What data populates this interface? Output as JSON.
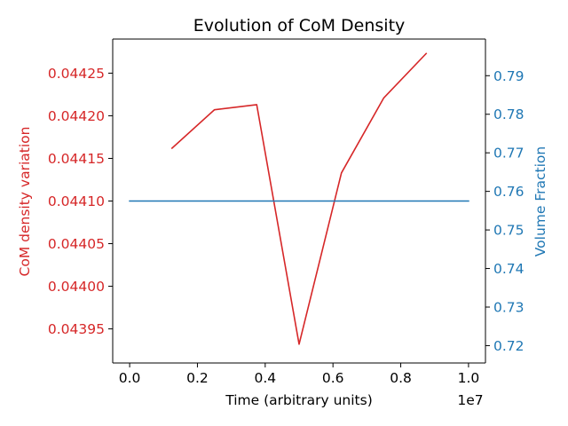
{
  "chart_data": {
    "type": "line",
    "title": "Evolution of CoM Density",
    "xlabel": "Time (arbitrary units)",
    "x_multiplier_label": "1e7",
    "xlim": [
      -500000,
      10500000
    ],
    "x_ticks": [
      0,
      2000000,
      4000000,
      6000000,
      8000000,
      10000000
    ],
    "x_tick_labels": [
      "0.0",
      "0.2",
      "0.4",
      "0.6",
      "0.8",
      "1.0"
    ],
    "left_axis": {
      "label": "CoM density variation",
      "color": "#d62728",
      "ylim": [
        0.04391,
        0.04429
      ],
      "ticks": [
        0.04395,
        0.044,
        0.04405,
        0.0441,
        0.04415,
        0.0442,
        0.04425
      ],
      "tick_labels": [
        "0.04395",
        "0.04400",
        "0.04405",
        "0.04410",
        "0.04415",
        "0.04420",
        "0.04425"
      ]
    },
    "right_axis": {
      "label": "Volume Fraction",
      "color": "#1f77b4",
      "ylim": [
        0.7155,
        0.7995
      ],
      "ticks": [
        0.72,
        0.73,
        0.74,
        0.75,
        0.76,
        0.77,
        0.78,
        0.79
      ],
      "tick_labels": [
        "0.72",
        "0.73",
        "0.74",
        "0.75",
        "0.76",
        "0.77",
        "0.78",
        "0.79"
      ]
    },
    "series": [
      {
        "axis": "left",
        "color": "#d62728",
        "x": [
          1250000,
          2500000,
          3750000,
          5000000,
          6250000,
          7500000,
          8750000
        ],
        "y": [
          0.044162,
          0.044207,
          0.044213,
          0.043932,
          0.044133,
          0.044221,
          0.044273
        ]
      },
      {
        "axis": "right",
        "color": "#1f77b4",
        "x": [
          0,
          10000000
        ],
        "y": [
          0.7575,
          0.7575
        ]
      }
    ]
  }
}
